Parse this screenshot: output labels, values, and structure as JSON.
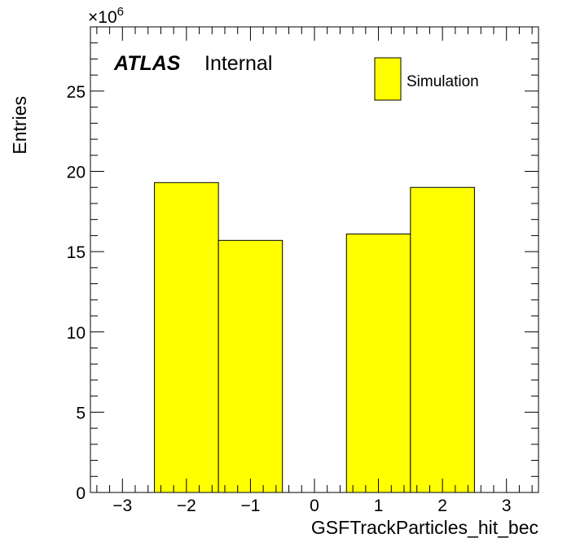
{
  "chart_data": {
    "type": "bar",
    "x_label": "GSFTrackParticles_hit_bec",
    "y_label": "Entries",
    "y_multiplier_base": "×10",
    "y_multiplier_exp": "6",
    "x_range": [
      -3.5,
      3.5
    ],
    "y_range": [
      0,
      29
    ],
    "x_ticks": [
      {
        "v": -3,
        "label": "−3"
      },
      {
        "v": -2,
        "label": "−2"
      },
      {
        "v": -1,
        "label": "−1"
      },
      {
        "v": 0,
        "label": "0"
      },
      {
        "v": 1,
        "label": "1"
      },
      {
        "v": 2,
        "label": "2"
      },
      {
        "v": 3,
        "label": "3"
      }
    ],
    "y_ticks": [
      {
        "v": 0,
        "label": "0"
      },
      {
        "v": 5,
        "label": "5"
      },
      {
        "v": 10,
        "label": "10"
      },
      {
        "v": 15,
        "label": "15"
      },
      {
        "v": 20,
        "label": "20"
      },
      {
        "v": 25,
        "label": "25"
      }
    ],
    "bin_edges": [
      -3.5,
      -2.5,
      -1.5,
      -0.5,
      0.5,
      1.5,
      2.5,
      3.5
    ],
    "values": [
      0,
      19.3,
      15.7,
      0,
      16.1,
      19.0,
      0
    ],
    "bar_color": "#ffff00",
    "legend": [
      {
        "name": "Simulation",
        "color": "#ffff00"
      }
    ],
    "atlas_label": "ATLAS",
    "atlas_sublabel": "Internal"
  }
}
